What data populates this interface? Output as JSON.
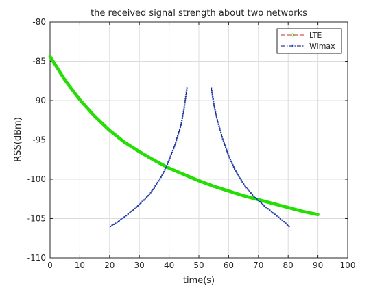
{
  "chart_data": {
    "type": "line",
    "title": "the received signal strength about two networks",
    "xlabel": "time(s)",
    "ylabel": "RSS(dBm)",
    "xlim": [
      0,
      100
    ],
    "ylim": [
      -110,
      -80
    ],
    "xticks": [
      0,
      10,
      20,
      30,
      40,
      50,
      60,
      70,
      80,
      90,
      100
    ],
    "yticks": [
      -110,
      -105,
      -100,
      -95,
      -90,
      -85,
      -80
    ],
    "grid": true,
    "legend_position": "top-right",
    "series": [
      {
        "name": "LTE",
        "line_color": "#d62728",
        "marker_color": "#22e000",
        "line_style": "dashed",
        "marker": "o",
        "points": [
          [
            0,
            -84.4
          ],
          [
            5,
            -87.4
          ],
          [
            10,
            -89.9
          ],
          [
            15,
            -92.0
          ],
          [
            20,
            -93.8
          ],
          [
            25,
            -95.3
          ],
          [
            30,
            -96.5
          ],
          [
            35,
            -97.6
          ],
          [
            40,
            -98.6
          ],
          [
            45,
            -99.4
          ],
          [
            50,
            -100.2
          ],
          [
            55,
            -100.9
          ],
          [
            60,
            -101.5
          ],
          [
            65,
            -102.1
          ],
          [
            70,
            -102.6
          ],
          [
            75,
            -103.1
          ],
          [
            80,
            -103.6
          ],
          [
            85,
            -104.1
          ],
          [
            90,
            -104.5
          ]
        ]
      },
      {
        "name": "Wimax",
        "line_color": "#00008b",
        "marker_color": "#1f3fbf",
        "line_style": "dashdot",
        "marker": ".",
        "points": [
          [
            20.3,
            -106.0
          ],
          [
            22,
            -105.6
          ],
          [
            25,
            -104.8
          ],
          [
            28,
            -103.9
          ],
          [
            30,
            -103.2
          ],
          [
            33,
            -102.1
          ],
          [
            35,
            -101.1
          ],
          [
            38,
            -99.3
          ],
          [
            40,
            -97.6
          ],
          [
            42,
            -95.6
          ],
          [
            44,
            -93.1
          ],
          [
            45,
            -91.1
          ],
          [
            46,
            -88.4
          ],
          null,
          [
            54.2,
            -88.4
          ],
          [
            55,
            -90.4
          ],
          [
            56,
            -92.2
          ],
          [
            58,
            -94.9
          ],
          [
            60,
            -97.0
          ],
          [
            62,
            -98.7
          ],
          [
            65,
            -100.6
          ],
          [
            68,
            -102.0
          ],
          [
            70,
            -102.7
          ],
          [
            72,
            -103.4
          ],
          [
            75,
            -104.3
          ],
          [
            78,
            -105.2
          ],
          [
            80.3,
            -106.0
          ]
        ]
      }
    ]
  }
}
